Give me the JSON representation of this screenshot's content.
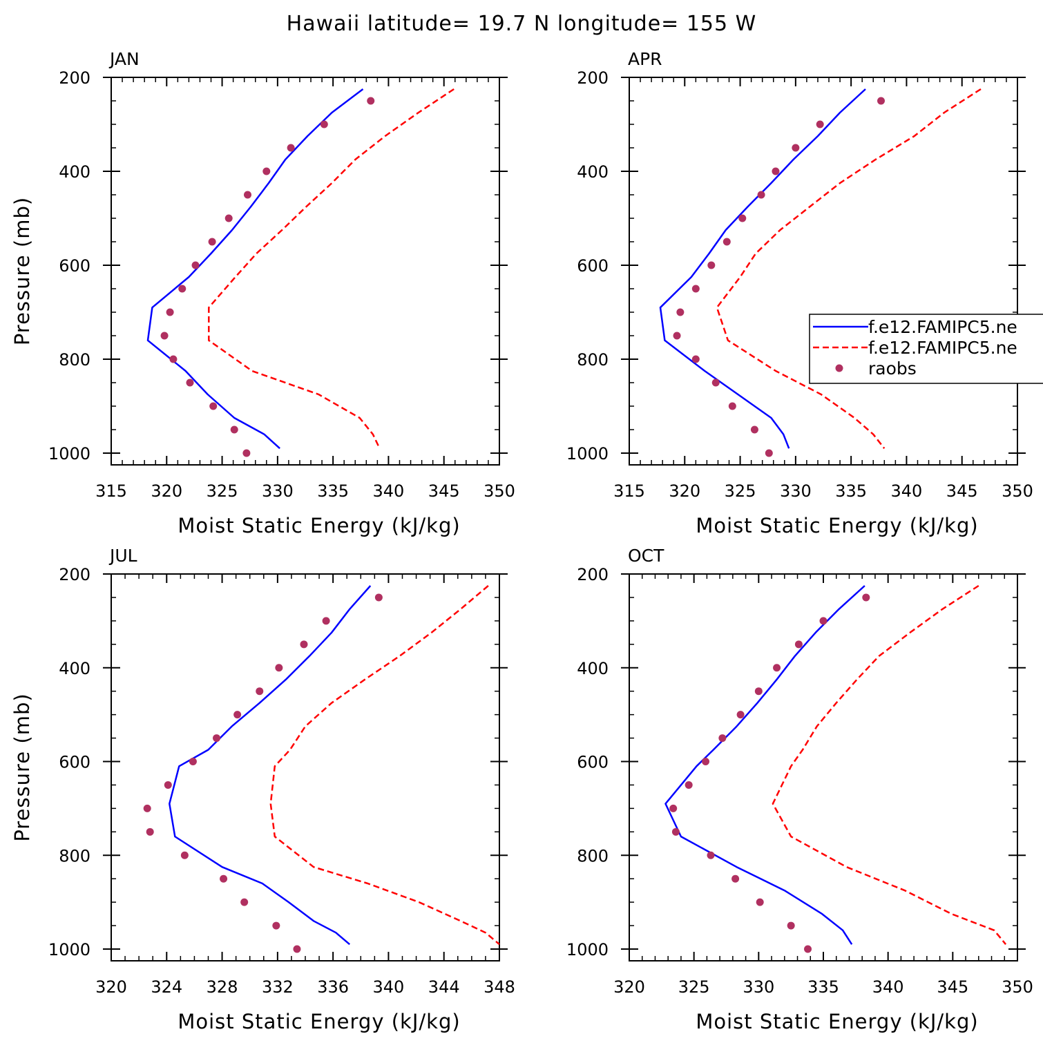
{
  "title": "Hawaii  latitude= 19.7 N longitude= 155 W",
  "colors": {
    "model_a": "#0000ff",
    "model_b": "#ff0000",
    "raobs": "#b03060",
    "axis": "#000000"
  },
  "legend": {
    "location": "upper-right panel, right side",
    "entries": [
      {
        "label": "f.e12.FAMIPC5.ne",
        "style": "solid",
        "color_key": "model_a"
      },
      {
        "label": "f.e12.FAMIPC5.ne",
        "style": "dashed",
        "color_key": "model_b"
      },
      {
        "label": "raobs",
        "style": "marker",
        "color_key": "raobs"
      }
    ]
  },
  "chart_data": [
    {
      "type": "line",
      "panel": "JAN",
      "xlabel": "Moist Static Energy (kJ/kg)",
      "ylabel": "Pressure (mb)",
      "xlim": [
        315,
        350
      ],
      "ylim": [
        1000,
        200
      ],
      "xticks": [
        "315",
        "320",
        "325",
        "330",
        "335",
        "340",
        "345",
        "350"
      ],
      "yticks": [
        "200",
        "400",
        "600",
        "800",
        "1000"
      ],
      "series": [
        {
          "name": "f.e12.FAMIPC5.ne",
          "style": "solid",
          "pressure": [
            225,
            275,
            325,
            375,
            425,
            475,
            525,
            575,
            625,
            690,
            760,
            825,
            875,
            925,
            960,
            990
          ],
          "values": [
            337.7,
            334.9,
            332.7,
            330.7,
            329.2,
            327.6,
            325.9,
            324.0,
            322.0,
            318.7,
            318.3,
            321.7,
            323.7,
            326.1,
            328.8,
            330.2
          ]
        },
        {
          "name": "f.e12.FAMIPC5.ne",
          "style": "dashed",
          "pressure": [
            225,
            275,
            325,
            375,
            425,
            475,
            525,
            575,
            625,
            690,
            760,
            825,
            875,
            925,
            960,
            990
          ],
          "values": [
            345.9,
            342.7,
            339.7,
            337.0,
            334.9,
            332.6,
            330.4,
            328.1,
            326.2,
            323.8,
            323.8,
            327.7,
            333.7,
            337.4,
            338.6,
            339.2
          ]
        },
        {
          "name": "raobs",
          "style": "marker",
          "pressure": [
            250,
            300,
            350,
            400,
            450,
            500,
            550,
            600,
            650,
            700,
            750,
            800,
            850,
            900,
            950,
            1000
          ],
          "values": [
            338.4,
            334.2,
            331.2,
            329.0,
            327.3,
            325.6,
            324.1,
            322.6,
            321.4,
            320.3,
            319.8,
            320.6,
            322.1,
            324.2,
            326.1,
            327.2
          ]
        }
      ]
    },
    {
      "type": "line",
      "panel": "APR",
      "xlabel": "Moist Static Energy (kJ/kg)",
      "ylabel": "",
      "xlim": [
        315,
        350
      ],
      "ylim": [
        1000,
        200
      ],
      "xticks": [
        "315",
        "320",
        "325",
        "330",
        "335",
        "340",
        "345",
        "350"
      ],
      "yticks": [
        "200",
        "400",
        "600",
        "800",
        "1000"
      ],
      "series": [
        {
          "name": "f.e12.FAMIPC5.ne",
          "style": "solid",
          "pressure": [
            225,
            275,
            325,
            375,
            425,
            475,
            525,
            575,
            625,
            690,
            760,
            825,
            875,
            925,
            960,
            990
          ],
          "values": [
            336.3,
            334.0,
            332.0,
            329.8,
            327.8,
            325.7,
            323.7,
            322.2,
            320.6,
            317.8,
            318.2,
            321.8,
            324.8,
            327.8,
            328.9,
            329.4
          ]
        },
        {
          "name": "f.e12.FAMIPC5.ne",
          "style": "dashed",
          "pressure": [
            225,
            275,
            325,
            375,
            425,
            475,
            525,
            575,
            625,
            690,
            760,
            825,
            875,
            925,
            960,
            990
          ],
          "values": [
            346.7,
            343.4,
            340.7,
            337.2,
            334.0,
            331.3,
            328.6,
            326.4,
            325.0,
            322.9,
            323.9,
            328.2,
            332.3,
            335.3,
            337.0,
            338.0
          ]
        },
        {
          "name": "raobs",
          "style": "marker",
          "pressure": [
            250,
            300,
            350,
            400,
            450,
            500,
            550,
            600,
            650,
            700,
            750,
            800,
            850,
            900,
            950,
            1000
          ],
          "values": [
            337.7,
            332.2,
            330.0,
            328.2,
            326.9,
            325.2,
            323.8,
            322.4,
            321.0,
            319.6,
            319.3,
            321.0,
            322.8,
            324.3,
            326.3,
            327.6
          ]
        }
      ]
    },
    {
      "type": "line",
      "panel": "JUL",
      "xlabel": "Moist Static Energy (kJ/kg)",
      "ylabel": "Pressure (mb)",
      "xlim": [
        320,
        348
      ],
      "ylim": [
        1000,
        200
      ],
      "xticks": [
        "320",
        "324",
        "328",
        "332",
        "336",
        "340",
        "344",
        "348"
      ],
      "yticks": [
        "200",
        "400",
        "600",
        "800",
        "1000"
      ],
      "series": [
        {
          "name": "f.e12.FAMIPC5.ne",
          "style": "solid",
          "pressure": [
            225,
            275,
            325,
            375,
            425,
            475,
            525,
            575,
            610,
            690,
            760,
            825,
            860,
            900,
            940,
            965,
            990
          ],
          "values": [
            338.7,
            337.2,
            335.9,
            334.3,
            332.6,
            330.7,
            328.7,
            327.0,
            324.9,
            324.2,
            324.6,
            328.0,
            330.9,
            332.8,
            334.6,
            336.2,
            337.2
          ]
        },
        {
          "name": "f.e12.FAMIPC5.ne",
          "style": "dashed",
          "pressure": [
            225,
            275,
            325,
            375,
            425,
            475,
            525,
            575,
            610,
            690,
            760,
            825,
            860,
            900,
            940,
            965,
            990
          ],
          "values": [
            347.2,
            345.2,
            343.1,
            340.8,
            338.3,
            335.9,
            334.0,
            332.9,
            331.8,
            331.5,
            331.8,
            334.6,
            338.5,
            342.2,
            345.2,
            347.0,
            348.0
          ]
        },
        {
          "name": "raobs",
          "style": "marker",
          "pressure": [
            250,
            300,
            350,
            400,
            450,
            500,
            550,
            600,
            650,
            700,
            750,
            800,
            850,
            900,
            950,
            1000
          ],
          "values": [
            339.3,
            335.5,
            333.9,
            332.1,
            330.7,
            329.1,
            327.6,
            325.9,
            324.1,
            322.6,
            322.8,
            325.3,
            328.1,
            329.6,
            331.9,
            333.4
          ]
        }
      ]
    },
    {
      "type": "line",
      "panel": "OCT",
      "xlabel": "Moist Static Energy (kJ/kg)",
      "ylabel": "",
      "xlim": [
        320,
        350
      ],
      "ylim": [
        1000,
        200
      ],
      "xticks": [
        "320",
        "325",
        "330",
        "335",
        "340",
        "345",
        "350"
      ],
      "yticks": [
        "200",
        "400",
        "600",
        "800",
        "1000"
      ],
      "series": [
        {
          "name": "f.e12.FAMIPC5.ne",
          "style": "solid",
          "pressure": [
            225,
            275,
            325,
            375,
            425,
            475,
            525,
            575,
            610,
            690,
            760,
            825,
            875,
            925,
            960,
            990
          ],
          "values": [
            338.2,
            336.2,
            334.4,
            332.8,
            331.4,
            329.9,
            328.3,
            326.5,
            325.2,
            322.8,
            324.0,
            328.3,
            332.0,
            334.9,
            336.5,
            337.2
          ]
        },
        {
          "name": "f.e12.FAMIPC5.ne",
          "style": "dashed",
          "pressure": [
            225,
            275,
            325,
            375,
            425,
            475,
            525,
            575,
            610,
            690,
            760,
            825,
            875,
            925,
            960,
            990
          ],
          "values": [
            347.0,
            344.2,
            341.7,
            339.3,
            337.6,
            336.0,
            334.5,
            333.4,
            332.5,
            331.1,
            332.5,
            336.8,
            341.3,
            344.9,
            348.2,
            349.1
          ]
        },
        {
          "name": "raobs",
          "style": "marker",
          "pressure": [
            250,
            300,
            350,
            400,
            450,
            500,
            550,
            600,
            650,
            700,
            750,
            800,
            850,
            900,
            950,
            1000
          ],
          "values": [
            338.3,
            335.0,
            333.1,
            331.4,
            330.0,
            328.6,
            327.2,
            325.9,
            324.6,
            323.4,
            323.6,
            326.3,
            328.2,
            330.1,
            332.5,
            333.8
          ]
        }
      ]
    }
  ]
}
